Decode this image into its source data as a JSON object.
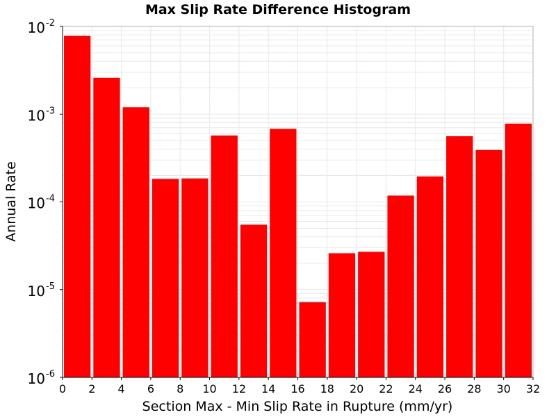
{
  "chart_data": {
    "type": "bar",
    "title": "Max Slip Rate Difference Histogram",
    "xlabel": "Section Max - Min Slip Rate in Rupture (mm/yr)",
    "ylabel": "Annual Rate",
    "xlim": [
      0,
      32
    ],
    "ylim": [
      1e-06,
      0.01
    ],
    "y_scale": "log",
    "x_ticks": [
      "0",
      "2",
      "4",
      "6",
      "8",
      "10",
      "12",
      "14",
      "16",
      "18",
      "20",
      "22",
      "24",
      "26",
      "28",
      "30",
      "32"
    ],
    "y_ticks": [
      {
        "base": "10",
        "exp": "-6",
        "value": 1e-06
      },
      {
        "base": "10",
        "exp": "-5",
        "value": 1e-05
      },
      {
        "base": "10",
        "exp": "-4",
        "value": 0.0001
      },
      {
        "base": "10",
        "exp": "-3",
        "value": 0.001
      },
      {
        "base": "10",
        "exp": "-2",
        "value": 0.01
      }
    ],
    "bin_width": 2,
    "bins": [
      {
        "x": 1,
        "value": 0.0078
      },
      {
        "x": 3,
        "value": 0.0026
      },
      {
        "x": 5,
        "value": 0.0012
      },
      {
        "x": 7,
        "value": 0.000183
      },
      {
        "x": 9,
        "value": 0.000185
      },
      {
        "x": 11,
        "value": 0.00057
      },
      {
        "x": 13,
        "value": 5.5e-05
      },
      {
        "x": 15,
        "value": 0.00068
      },
      {
        "x": 17,
        "value": 7.2e-06
      },
      {
        "x": 19,
        "value": 2.6e-05
      },
      {
        "x": 21,
        "value": 2.7e-05
      },
      {
        "x": 23,
        "value": 0.000118
      },
      {
        "x": 25,
        "value": 0.000195
      },
      {
        "x": 27,
        "value": 0.00056
      },
      {
        "x": 29,
        "value": 0.00039
      },
      {
        "x": 31,
        "value": 0.00078
      }
    ],
    "bar_color": "#ff0000",
    "grid": true,
    "grid_color": "#e8e8e8"
  }
}
